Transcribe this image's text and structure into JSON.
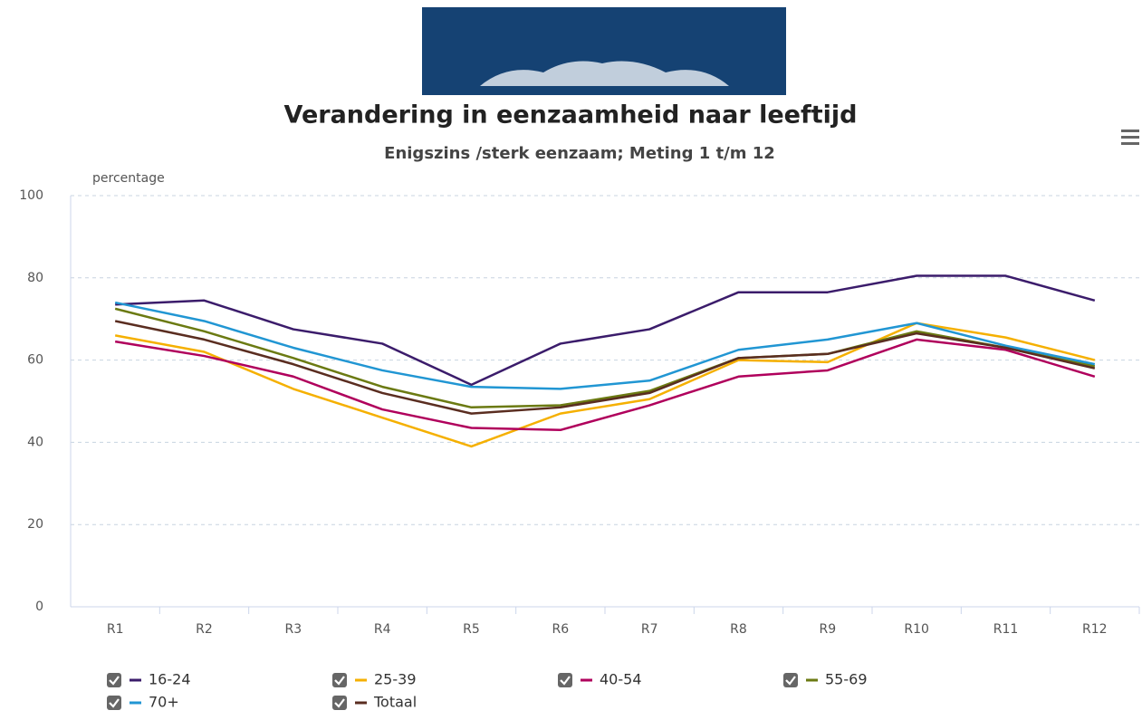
{
  "chart_data": {
    "type": "line",
    "title": "Verandering in eenzaamheid naar leeftijd",
    "subtitle": "Enigszins /sterk eenzaam; Meting 1 t/m 12",
    "y_label": "percentage",
    "categories": [
      "R1",
      "R2",
      "R3",
      "R4",
      "R5",
      "R6",
      "R7",
      "R8",
      "R9",
      "R10",
      "R11",
      "R12"
    ],
    "ylim": [
      0,
      100
    ],
    "yticks": [
      0,
      20,
      40,
      60,
      80,
      100
    ],
    "grid": true,
    "series": [
      {
        "name": "16-24",
        "color": "#3b1c6b",
        "values": [
          73.5,
          74.5,
          67.5,
          64,
          54,
          64,
          67.5,
          76.5,
          76.5,
          80.5,
          80.5,
          74.5
        ]
      },
      {
        "name": "25-39",
        "color": "#f5b000",
        "values": [
          66,
          62,
          53,
          46,
          39,
          47,
          50.5,
          60,
          59.5,
          69,
          65.5,
          60
        ]
      },
      {
        "name": "40-54",
        "color": "#b0005c",
        "values": [
          64.5,
          61,
          56,
          48,
          43.5,
          43,
          49,
          56,
          57.5,
          65,
          62.5,
          56
        ]
      },
      {
        "name": "55-69",
        "color": "#6b7a12",
        "values": [
          72.5,
          67,
          60.5,
          53.5,
          48.5,
          49,
          52.5,
          60.5,
          61.5,
          67,
          63,
          58.5
        ]
      },
      {
        "name": "70+",
        "color": "#2196d3",
        "values": [
          74,
          69.5,
          63,
          57.5,
          53.5,
          53,
          55,
          62.5,
          65,
          69,
          63.5,
          59
        ]
      },
      {
        "name": "Totaal",
        "color": "#5a2d20",
        "values": [
          69.5,
          65,
          59,
          52,
          47,
          48.5,
          52,
          60.5,
          61.5,
          66.5,
          63,
          58
        ]
      }
    ]
  }
}
